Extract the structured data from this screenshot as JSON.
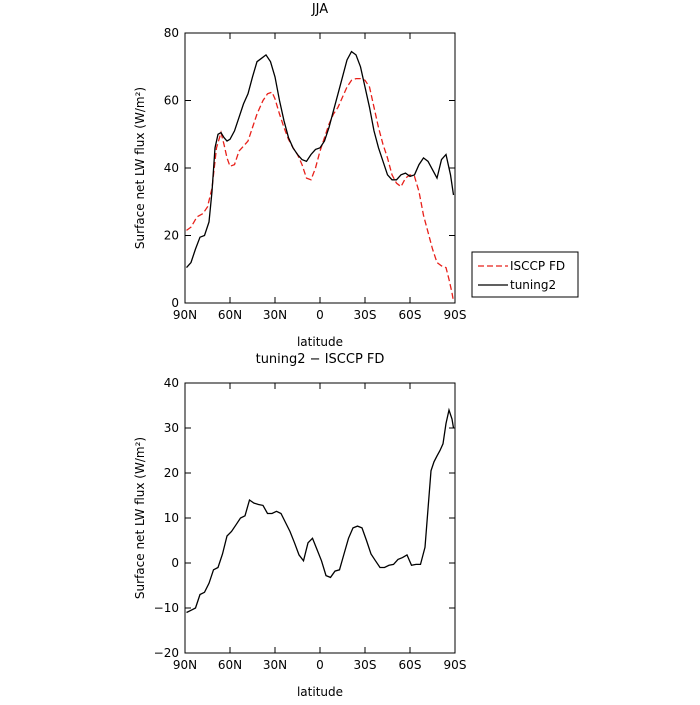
{
  "chart_data": [
    {
      "type": "line",
      "title": "JJA",
      "xlabel": "latitude",
      "ylabel": "Surface net LW flux (W/m²)",
      "xlim": [
        90,
        -90
      ],
      "ylim": [
        0,
        80
      ],
      "xticks": [
        90,
        60,
        30,
        0,
        -30,
        -60,
        -90
      ],
      "xtick_labels": [
        "90N",
        "60N",
        "30N",
        "0",
        "30S",
        "60S",
        "90S"
      ],
      "yticks": [
        0,
        20,
        40,
        60,
        80
      ],
      "ytick_labels": [
        "0",
        "20",
        "40",
        "60",
        "80"
      ],
      "legend_position": "right",
      "grid": false,
      "series": [
        {
          "name": "ISCCP FD",
          "color": "#e8201a",
          "dash": "dashed",
          "x": [
            89,
            86,
            82,
            78,
            75,
            72,
            69,
            66,
            64,
            62,
            60,
            57,
            54,
            51,
            48,
            45,
            42,
            38,
            35,
            32,
            30,
            27,
            24,
            21,
            18,
            15,
            12,
            9,
            6,
            3,
            0,
            -3,
            -6,
            -9,
            -12,
            -15,
            -18,
            -21,
            -24,
            -27,
            -30,
            -33,
            -36,
            -39,
            -42,
            -45,
            -48,
            -51,
            -54,
            -57,
            -60,
            -63,
            -66,
            -69,
            -72,
            -75,
            -78,
            -81,
            -84,
            -86,
            -88,
            -89
          ],
          "y": [
            21.5,
            22.5,
            25.5,
            26.5,
            28.5,
            34,
            46,
            50.5,
            47,
            43,
            40.5,
            41,
            45,
            46.5,
            48,
            52,
            56,
            60,
            62,
            62.5,
            60.5,
            56,
            52,
            48.5,
            46,
            44,
            41,
            37,
            36.5,
            40,
            45,
            49,
            53,
            56,
            58,
            61,
            64,
            66,
            66.5,
            66.5,
            66,
            64,
            58,
            52,
            47,
            43,
            38,
            35.5,
            34.5,
            37,
            38,
            37.5,
            33,
            26,
            21,
            16,
            12,
            11,
            10.5,
            7,
            3,
            0.5
          ]
        },
        {
          "name": "tuning2",
          "color": "#000000",
          "dash": "solid",
          "x": [
            89,
            86,
            83,
            80,
            77,
            74,
            72,
            70,
            68,
            66,
            64,
            62,
            60,
            57,
            54,
            51,
            48,
            45,
            42,
            39,
            36,
            33,
            30,
            27,
            24,
            21,
            18,
            15,
            12,
            9,
            6,
            3,
            0,
            -3,
            -6,
            -9,
            -12,
            -15,
            -18,
            -21,
            -24,
            -27,
            -30,
            -33,
            -36,
            -39,
            -42,
            -45,
            -48,
            -51,
            -54,
            -57,
            -60,
            -63,
            -66,
            -69,
            -72,
            -75,
            -78,
            -81,
            -84,
            -87,
            -89
          ],
          "y": [
            10.5,
            12,
            16,
            19.5,
            20,
            24,
            33,
            46,
            50,
            50.5,
            49,
            48,
            48.5,
            51,
            55,
            59,
            62,
            67,
            71.5,
            72.5,
            73.5,
            71.5,
            67,
            60,
            54,
            49,
            46,
            44,
            42.5,
            42,
            44,
            45.5,
            46,
            48,
            52,
            57,
            62,
            67,
            72,
            74.5,
            73.5,
            70,
            64,
            58,
            51,
            46,
            42,
            38,
            36.5,
            36.5,
            38,
            38.5,
            37.5,
            38,
            41,
            43,
            42,
            39.5,
            37,
            42.5,
            44,
            38,
            32
          ]
        }
      ]
    },
    {
      "type": "line",
      "title": "tuning2 − ISCCP FD",
      "xlabel": "latitude",
      "ylabel": "Surface net LW flux (W/m²)",
      "xlim": [
        90,
        -90
      ],
      "ylim": [
        -20,
        40
      ],
      "xticks": [
        90,
        60,
        30,
        0,
        -30,
        -60,
        -90
      ],
      "xtick_labels": [
        "90N",
        "60N",
        "30N",
        "0",
        "30S",
        "60S",
        "90S"
      ],
      "yticks": [
        -20,
        -10,
        0,
        10,
        20,
        30,
        40
      ],
      "ytick_labels": [
        "−20",
        "−10",
        "0",
        "10",
        "20",
        "30",
        "40"
      ],
      "grid": false,
      "series": [
        {
          "color": "#000000",
          "dash": "solid",
          "x": [
            89,
            86,
            83,
            80,
            77,
            74,
            71,
            68,
            65,
            62,
            59,
            56,
            53,
            50,
            47,
            44,
            41,
            38,
            35,
            32,
            29,
            26,
            23,
            20,
            17,
            14,
            11,
            8,
            5,
            2,
            -1,
            -4,
            -7,
            -10,
            -13,
            -16,
            -19,
            -22,
            -25,
            -28,
            -31,
            -34,
            -37,
            -40,
            -43,
            -46,
            -49,
            -52,
            -55,
            -58,
            -61,
            -64,
            -67,
            -70,
            -72,
            -74,
            -76,
            -78,
            -80,
            -82,
            -84,
            -86,
            -88,
            -89
          ],
          "y": [
            -11,
            -10.5,
            -10,
            -7,
            -6.5,
            -4.5,
            -1.5,
            -1,
            2,
            6,
            7,
            8.5,
            10,
            10.5,
            14,
            13.3,
            13,
            12.8,
            11,
            11,
            11.5,
            11,
            9,
            7,
            4.5,
            1.8,
            0.5,
            4.5,
            5.5,
            3,
            0.5,
            -2.8,
            -3.2,
            -1.8,
            -1.5,
            2,
            5.5,
            7.8,
            8.2,
            7.8,
            5,
            2,
            0.5,
            -1,
            -1,
            -0.5,
            -0.3,
            0.8,
            1.2,
            1.8,
            -0.5,
            -0.3,
            -0.3,
            3.5,
            12,
            20.5,
            22.5,
            23.8,
            25,
            26.5,
            31,
            34,
            32,
            30
          ]
        }
      ]
    }
  ]
}
